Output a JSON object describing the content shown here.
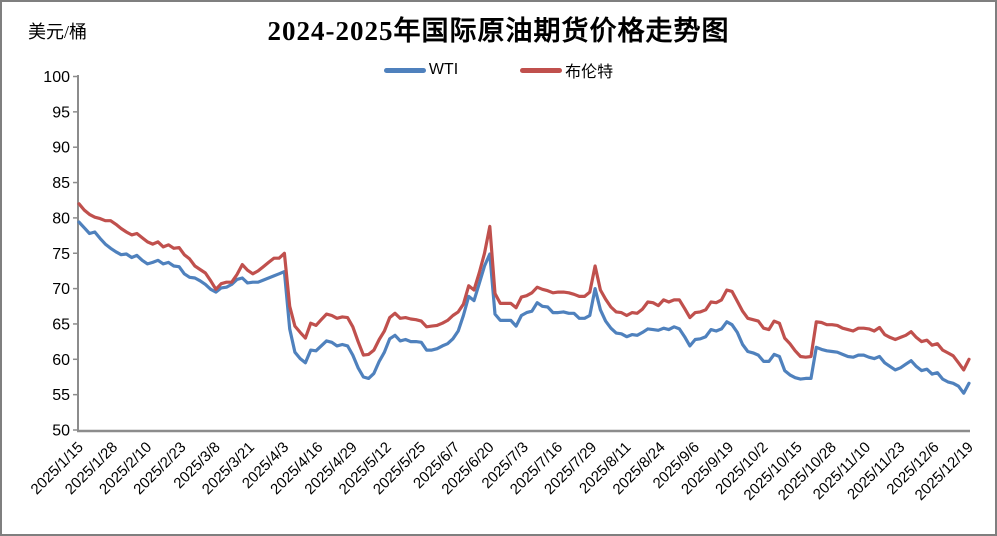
{
  "page": {
    "background": "#ffffff",
    "border_color": "#7f7f7f",
    "axis_color": "#8c8c8c",
    "text_color": "#000000"
  },
  "chart": {
    "title": "2024-2025年国际原油期货价格走势图",
    "unit_label": "美元/桶",
    "legend": [
      {
        "label": "WTI",
        "color": "#4F81BD"
      },
      {
        "label": "布伦特",
        "color": "#C0504D"
      }
    ]
  },
  "chart_data": {
    "type": "line",
    "title": "2024-2025年国际原油期货价格走势图",
    "xlabel": "",
    "ylabel": "美元/桶",
    "ylim": [
      50,
      100
    ],
    "yticks": [
      50,
      55,
      60,
      65,
      70,
      75,
      80,
      85,
      90,
      95,
      100
    ],
    "grid": false,
    "legend_position": "top",
    "x_start": "2025/1/15",
    "x_end": "2025/12/19",
    "sample_spacing_days": 2,
    "x_tick_labels": [
      "2025/1/15",
      "2025/1/28",
      "2025/2/10",
      "2025/2/23",
      "2025/3/8",
      "2025/3/21",
      "2025/4/3",
      "2025/4/16",
      "2025/4/29",
      "2025/5/12",
      "2025/5/25",
      "2025/6/7",
      "2025/6/20",
      "2025/7/3",
      "2025/7/16",
      "2025/7/29",
      "2025/8/11",
      "2025/8/24",
      "2025/9/6",
      "2025/9/19",
      "2025/10/2",
      "2025/10/15",
      "2025/10/28",
      "2025/11/10",
      "2025/11/23",
      "2025/12/6",
      "2025/12/19"
    ],
    "series": [
      {
        "name": "WTI",
        "color": "#4F81BD",
        "values": [
          79.4,
          78.6,
          77.8,
          78.0,
          77.1,
          76.3,
          75.7,
          75.2,
          74.8,
          74.9,
          74.4,
          74.7,
          74.0,
          73.5,
          73.7,
          74.0,
          73.5,
          73.7,
          73.2,
          73.1,
          72.1,
          71.6,
          71.5,
          71.1,
          70.6,
          69.9,
          69.5,
          70.1,
          70.2,
          70.6,
          71.3,
          71.5,
          70.8,
          70.9,
          70.9,
          71.2,
          71.5,
          71.8,
          72.1,
          72.4,
          64.3,
          61.0,
          60.1,
          59.5,
          61.3,
          61.2,
          61.9,
          62.6,
          62.4,
          61.9,
          62.1,
          61.9,
          60.6,
          58.8,
          57.5,
          57.3,
          58.0,
          59.7,
          61.0,
          62.9,
          63.4,
          62.6,
          62.8,
          62.5,
          62.5,
          62.4,
          61.3,
          61.3,
          61.5,
          61.9,
          62.2,
          62.9,
          64.0,
          66.2,
          68.9,
          68.3,
          70.7,
          73.2,
          74.9,
          66.4,
          65.5,
          65.5,
          65.5,
          64.7,
          66.2,
          66.6,
          66.8,
          68.0,
          67.5,
          67.4,
          66.6,
          66.6,
          66.7,
          66.5,
          66.5,
          65.8,
          65.8,
          66.2,
          70.0,
          67.0,
          65.4,
          64.4,
          63.7,
          63.6,
          63.2,
          63.5,
          63.4,
          63.8,
          64.3,
          64.2,
          64.1,
          64.4,
          64.2,
          64.6,
          64.3,
          63.2,
          61.9,
          62.8,
          62.9,
          63.2,
          64.2,
          64.0,
          64.3,
          65.3,
          64.9,
          63.8,
          62.1,
          61.1,
          60.9,
          60.6,
          59.7,
          59.7,
          60.7,
          60.4,
          58.4,
          57.8,
          57.4,
          57.2,
          57.3,
          57.3,
          61.7,
          61.4,
          61.2,
          61.1,
          61.0,
          60.7,
          60.4,
          60.3,
          60.6,
          60.6,
          60.3,
          60.1,
          60.4,
          59.5,
          59.0,
          58.5,
          58.8,
          59.3,
          59.8,
          59.0,
          58.4,
          58.6,
          57.9,
          58.1,
          57.2,
          56.8,
          56.6,
          56.2,
          55.2,
          56.6
        ]
      },
      {
        "name": "布伦特",
        "color": "#C0504D",
        "values": [
          82.0,
          81.1,
          80.5,
          80.1,
          79.9,
          79.6,
          79.6,
          79.1,
          78.5,
          78.0,
          77.6,
          77.8,
          77.2,
          76.6,
          76.3,
          76.6,
          75.9,
          76.2,
          75.7,
          75.8,
          74.8,
          74.2,
          73.2,
          72.7,
          72.2,
          71.1,
          69.9,
          70.7,
          70.9,
          70.9,
          72.0,
          73.4,
          72.6,
          72.1,
          72.5,
          73.1,
          73.7,
          74.3,
          74.3,
          75.0,
          67.5,
          64.7,
          63.8,
          63.0,
          65.1,
          64.8,
          65.6,
          66.4,
          66.2,
          65.8,
          66.0,
          65.9,
          64.6,
          62.5,
          60.6,
          60.7,
          61.3,
          62.8,
          64.0,
          65.9,
          66.5,
          65.8,
          65.9,
          65.7,
          65.6,
          65.4,
          64.6,
          64.7,
          64.8,
          65.1,
          65.5,
          66.2,
          66.7,
          67.8,
          70.4,
          69.8,
          72.2,
          75.0,
          78.8,
          69.3,
          67.9,
          67.9,
          67.9,
          67.3,
          68.8,
          69.0,
          69.4,
          70.2,
          69.9,
          69.7,
          69.4,
          69.5,
          69.5,
          69.4,
          69.2,
          68.9,
          68.9,
          69.5,
          73.2,
          69.8,
          68.5,
          67.4,
          66.7,
          66.6,
          66.2,
          66.6,
          66.5,
          67.1,
          68.1,
          68.0,
          67.6,
          68.4,
          68.1,
          68.4,
          68.4,
          67.2,
          65.9,
          66.6,
          66.7,
          67.0,
          68.1,
          68.0,
          68.4,
          69.8,
          69.6,
          68.2,
          66.8,
          65.8,
          65.6,
          65.4,
          64.4,
          64.2,
          65.4,
          65.1,
          63.0,
          62.2,
          61.2,
          60.4,
          60.3,
          60.4,
          65.3,
          65.2,
          64.9,
          64.9,
          64.8,
          64.4,
          64.2,
          64.0,
          64.4,
          64.4,
          64.3,
          64.0,
          64.5,
          63.5,
          63.1,
          62.8,
          63.1,
          63.4,
          63.9,
          63.1,
          62.5,
          62.7,
          62.0,
          62.2,
          61.3,
          60.9,
          60.5,
          59.5,
          58.5,
          60.0
        ]
      }
    ]
  }
}
